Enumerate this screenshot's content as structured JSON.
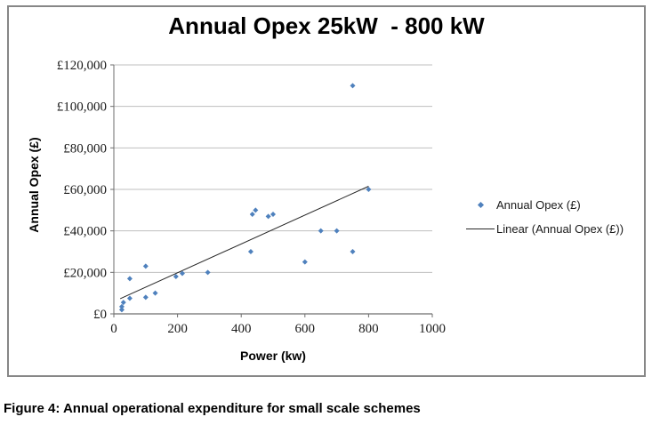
{
  "figure": {
    "caption": "Figure 4: Annual operational expenditure for small scale schemes"
  },
  "chart_data": {
    "type": "scatter",
    "title": "Annual Opex 25kW  - 800 kW",
    "xlabel": "Power (kw)",
    "ylabel": "Annual Opex (£)",
    "xlim": [
      0,
      1000
    ],
    "ylim": [
      0,
      120000
    ],
    "x_ticks": [
      {
        "value": 0,
        "label": "0"
      },
      {
        "value": 200,
        "label": "200"
      },
      {
        "value": 400,
        "label": "400"
      },
      {
        "value": 600,
        "label": "600"
      },
      {
        "value": 800,
        "label": "800"
      },
      {
        "value": 1000,
        "label": "1000"
      }
    ],
    "y_ticks": [
      {
        "value": 0,
        "label": "£0"
      },
      {
        "value": 20000,
        "label": "£20,000"
      },
      {
        "value": 40000,
        "label": "£40,000"
      },
      {
        "value": 60000,
        "label": "£60,000"
      },
      {
        "value": 80000,
        "label": "£80,000"
      },
      {
        "value": 100000,
        "label": "£100,000"
      },
      {
        "value": 120000,
        "label": "£120,000"
      }
    ],
    "grid": "horizontal",
    "legend": {
      "position": "right",
      "entries": [
        {
          "label": "Annual Opex (£)",
          "marker": "diamond"
        },
        {
          "label": "Linear (Annual Opex (£))",
          "marker": "line"
        }
      ]
    },
    "series": [
      {
        "name": "Annual Opex (£)",
        "marker": "diamond",
        "points": [
          [
            25,
            2000
          ],
          [
            25,
            3500
          ],
          [
            30,
            5500
          ],
          [
            50,
            7500
          ],
          [
            50,
            17000
          ],
          [
            100,
            8000
          ],
          [
            100,
            23000
          ],
          [
            130,
            10000
          ],
          [
            195,
            18000
          ],
          [
            215,
            19500
          ],
          [
            295,
            20000
          ],
          [
            430,
            30000
          ],
          [
            435,
            48000
          ],
          [
            445,
            50000
          ],
          [
            485,
            47000
          ],
          [
            500,
            48000
          ],
          [
            600,
            25000
          ],
          [
            650,
            40000
          ],
          [
            700,
            40000
          ],
          [
            750,
            30000
          ],
          [
            750,
            110000
          ],
          [
            800,
            60000
          ]
        ]
      }
    ],
    "trendline": {
      "name": "Linear (Annual Opex (£))",
      "x1": 20,
      "y1": 7300,
      "x2": 800,
      "y2": 61500
    },
    "colors": {
      "marker": "#4F81BD",
      "trendline": "#262626",
      "gridline": "#BFBFBF",
      "axis": "#6e6e6e",
      "border": "#878787"
    }
  }
}
